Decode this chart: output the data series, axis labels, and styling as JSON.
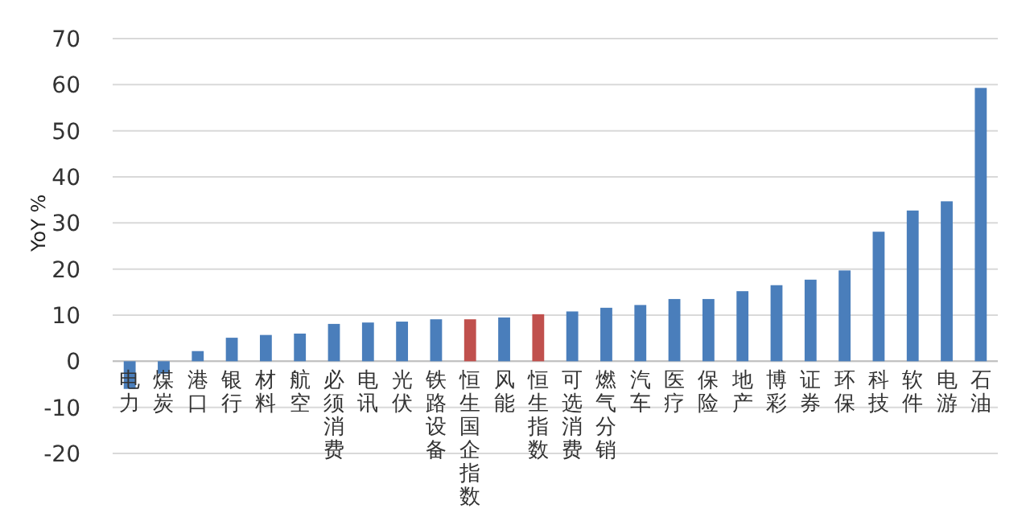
{
  "chart_data": {
    "type": "bar",
    "ylabel": "YoY %",
    "categories": [
      "电力",
      "煤炭",
      "港口",
      "银行",
      "材料",
      "航空",
      "必须消费",
      "电讯",
      "光伏",
      "铁路设备",
      "恒生国企指数",
      "风能",
      "恒生指数",
      "可选消费",
      "燃气分销",
      "汽车",
      "医疗",
      "保险",
      "地产",
      "博彩",
      "证券",
      "环保",
      "科技",
      "软件",
      "电游",
      "石油"
    ],
    "values": [
      -6,
      -2.7,
      2.2,
      5.1,
      5.7,
      6,
      8.1,
      8.4,
      8.6,
      9.1,
      9.1,
      9.5,
      10.2,
      10.8,
      11.6,
      12.2,
      13.5,
      13.5,
      15.2,
      16.5,
      17.7,
      19.7,
      28.1,
      32.7,
      34.7,
      59.3
    ],
    "colors": [
      "#4a7ebb",
      "#4a7ebb",
      "#4a7ebb",
      "#4a7ebb",
      "#4a7ebb",
      "#4a7ebb",
      "#4a7ebb",
      "#4a7ebb",
      "#4a7ebb",
      "#4a7ebb",
      "#c0504d",
      "#4a7ebb",
      "#c0504d",
      "#4a7ebb",
      "#4a7ebb",
      "#4a7ebb",
      "#4a7ebb",
      "#4a7ebb",
      "#4a7ebb",
      "#4a7ebb",
      "#4a7ebb",
      "#4a7ebb",
      "#4a7ebb",
      "#4a7ebb",
      "#4a7ebb",
      "#4a7ebb"
    ],
    "ylim": [
      -20,
      70
    ],
    "yticks": [
      -20,
      -10,
      0,
      10,
      20,
      30,
      40,
      50,
      60,
      70
    ],
    "grid": "y"
  }
}
